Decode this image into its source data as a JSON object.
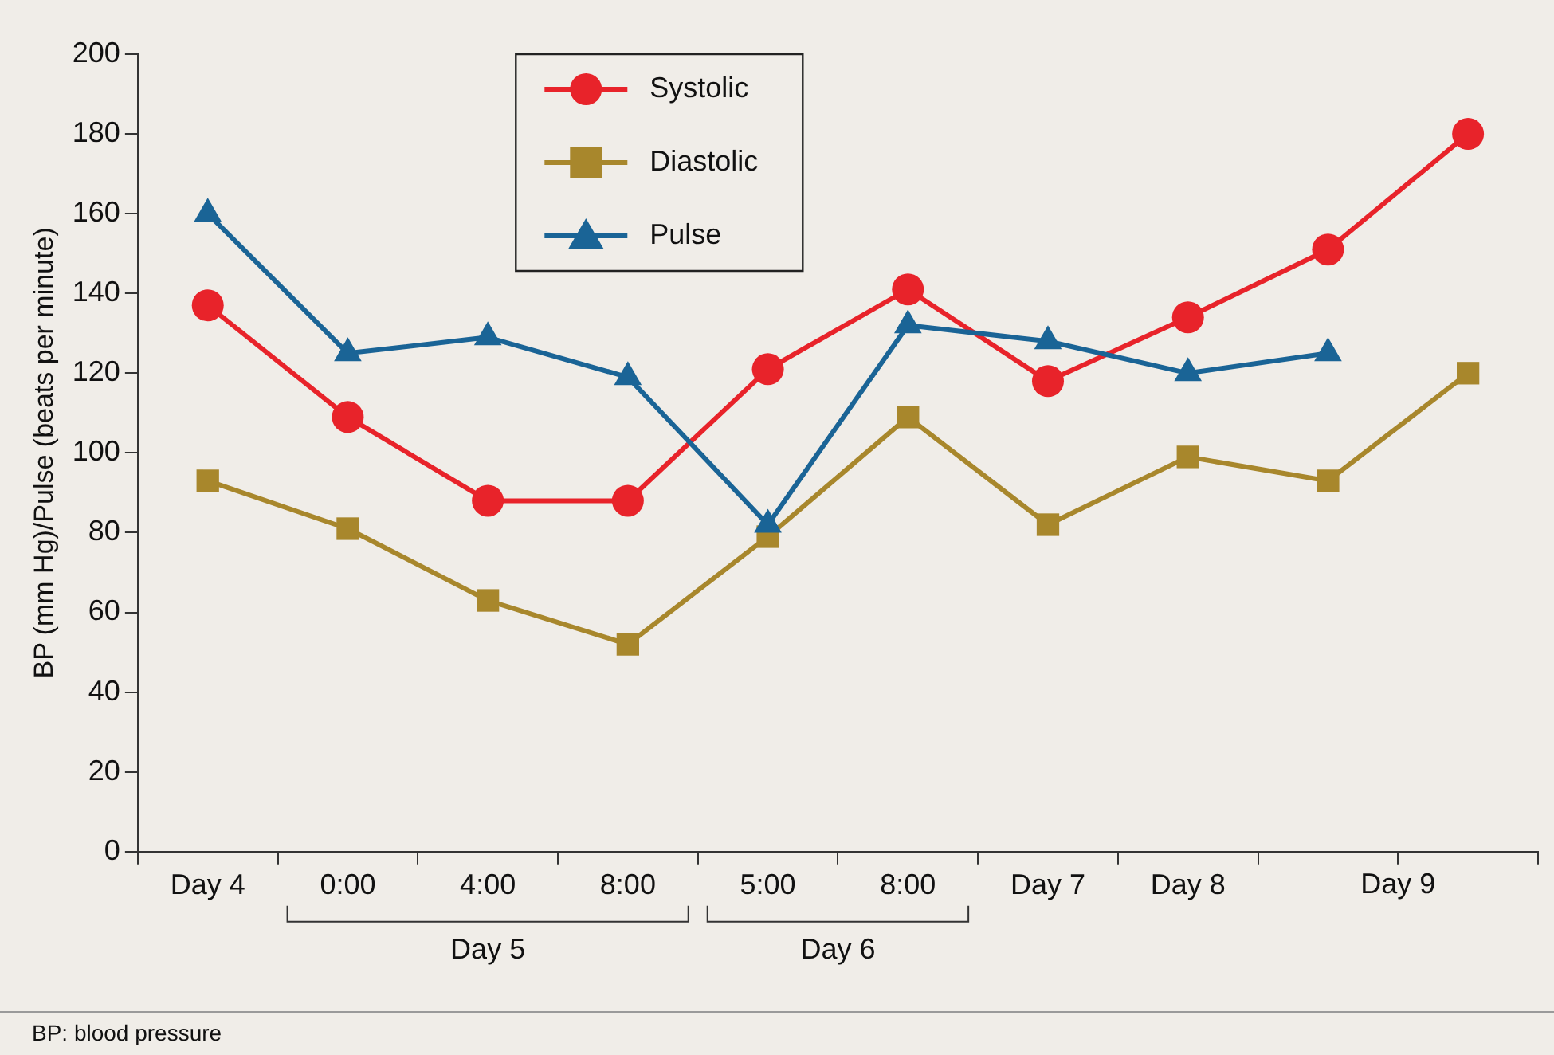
{
  "chart_data": {
    "type": "line",
    "ylabel": "BP (mm Hg)/Pulse (beats per minute)",
    "categories": [
      "Day 4",
      "0:00",
      "4:00",
      "8:00",
      "5:00",
      "8:00",
      "Day 7",
      "Day 8",
      null,
      null
    ],
    "series": [
      {
        "name": "Systolic",
        "color": "#e8232a",
        "marker": "circle",
        "values": [
          137,
          109,
          88,
          88,
          121,
          141,
          118,
          134,
          151,
          180
        ]
      },
      {
        "name": "Diastolic",
        "color": "#a8872c",
        "marker": "square",
        "values": [
          93,
          81,
          63,
          52,
          79,
          109,
          82,
          99,
          93,
          120
        ]
      },
      {
        "name": "Pulse",
        "color": "#1a6496",
        "marker": "triangle",
        "values": [
          160,
          125,
          129,
          119,
          82,
          132,
          128,
          120,
          125,
          null
        ]
      }
    ],
    "ylim": [
      0,
      200
    ],
    "yticks": [
      0,
      20,
      40,
      60,
      80,
      100,
      120,
      140,
      160,
      180,
      200
    ],
    "grid": false,
    "legend": "top",
    "line_style": "solid",
    "annotations": [
      "Day 5",
      "Day 6",
      "Day 9",
      "BP: blood pressure"
    ]
  }
}
